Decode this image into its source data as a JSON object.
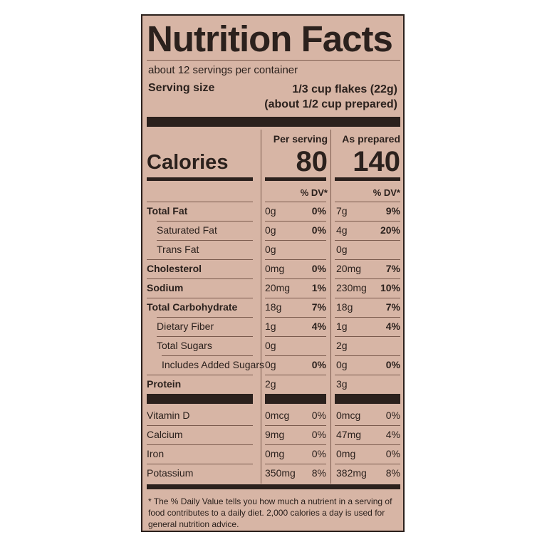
{
  "label": {
    "title": "Nutrition Facts",
    "servings_per_container": "about 12 servings per container",
    "serving_size_label": "Serving size",
    "serving_size_line1": "1/3 cup flakes (22g)",
    "serving_size_line2": "(about 1/2 cup prepared)",
    "col1_header": "Per serving",
    "col2_header": "As prepared",
    "calories_label": "Calories",
    "calories_col1": "80",
    "calories_col2": "140",
    "dv_header": "% DV*",
    "nutrients": [
      {
        "name": "Total Fat",
        "a1": "0g",
        "p1": "0%",
        "a2": "7g",
        "p2": "9%"
      },
      {
        "name": "Saturated Fat",
        "a1": "0g",
        "p1": "0%",
        "a2": "4g",
        "p2": "20%"
      },
      {
        "name": "Trans Fat",
        "a1": "0g",
        "p1": "",
        "a2": "0g",
        "p2": ""
      },
      {
        "name": "Cholesterol",
        "a1": "0mg",
        "p1": "0%",
        "a2": "20mg",
        "p2": "7%"
      },
      {
        "name": "Sodium",
        "a1": "20mg",
        "p1": "1%",
        "a2": "230mg",
        "p2": "10%"
      },
      {
        "name": "Total Carbohydrate",
        "a1": "18g",
        "p1": "7%",
        "a2": "18g",
        "p2": "7%"
      },
      {
        "name": "Dietary Fiber",
        "a1": "1g",
        "p1": "4%",
        "a2": "1g",
        "p2": "4%"
      },
      {
        "name": "Total Sugars",
        "a1": "0g",
        "p1": "",
        "a2": "2g",
        "p2": ""
      },
      {
        "name": "Includes Added Sugars",
        "a1": "0g",
        "p1": "0%",
        "a2": "0g",
        "p2": "0%"
      },
      {
        "name": "Protein",
        "a1": "2g",
        "p1": "",
        "a2": "3g",
        "p2": ""
      }
    ],
    "vitamins": [
      {
        "name": "Vitamin D",
        "a1": "0mcg",
        "p1": "0%",
        "a2": "0mcg",
        "p2": "0%"
      },
      {
        "name": "Calcium",
        "a1": "9mg",
        "p1": "0%",
        "a2": "47mg",
        "p2": "4%"
      },
      {
        "name": "Iron",
        "a1": "0mg",
        "p1": "0%",
        "a2": "0mg",
        "p2": "0%"
      },
      {
        "name": "Potassium",
        "a1": "350mg",
        "p1": "8%",
        "a2": "382mg",
        "p2": "8%"
      }
    ],
    "footnote": "* The % Daily Value tells you how much a nutrient in a serving of food contributes to a daily diet. 2,000 calories a day is used for general nutrition advice."
  },
  "colors": {
    "panel_bg": "#d7b5a5",
    "ink": "#2b211d"
  }
}
